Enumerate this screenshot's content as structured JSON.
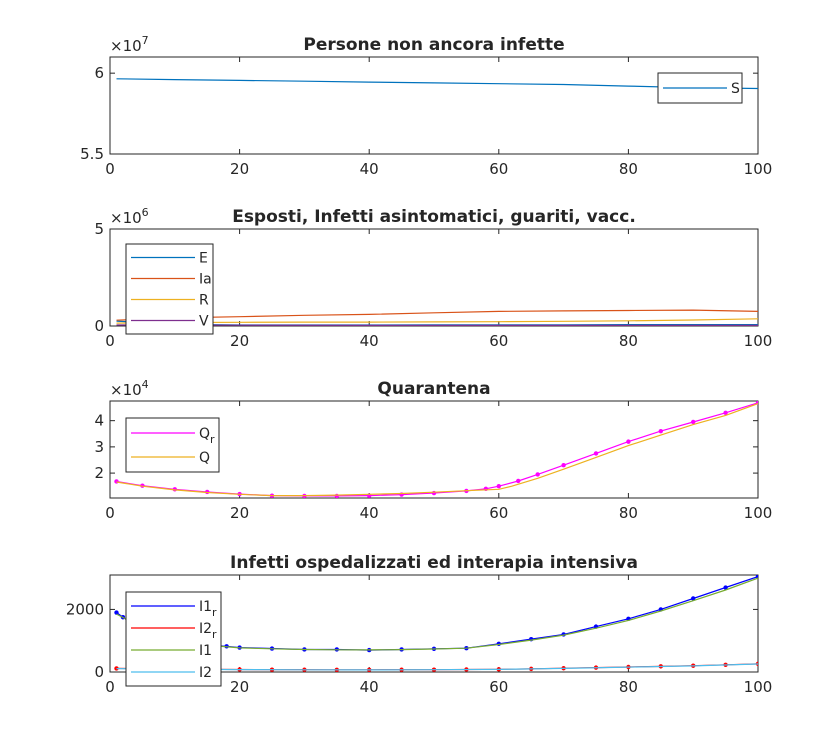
{
  "chart_data": [
    {
      "type": "line",
      "title": "Persone non ancora infette",
      "xlim": [
        0,
        100
      ],
      "ylim": [
        5.5,
        6.1
      ],
      "y_exponent": "7",
      "x_ticks": [
        "0",
        "20",
        "40",
        "60",
        "80",
        "100"
      ],
      "y_ticks": [
        "5.5",
        "6"
      ],
      "legend": "top-right",
      "series": [
        {
          "name": "S",
          "color": "#0072BD",
          "style": "line",
          "x": [
            1,
            10,
            20,
            30,
            40,
            50,
            60,
            70,
            80,
            90,
            100
          ],
          "y": [
            5.965,
            5.96,
            5.955,
            5.95,
            5.945,
            5.94,
            5.935,
            5.93,
            5.92,
            5.91,
            5.905
          ]
        }
      ]
    },
    {
      "type": "line",
      "title": "Esposti, Infetti asintomatici, guariti, vacc.",
      "xlim": [
        0,
        100
      ],
      "ylim": [
        0,
        5
      ],
      "y_exponent": "6",
      "x_ticks": [
        "0",
        "20",
        "40",
        "60",
        "80",
        "100"
      ],
      "y_ticks": [
        "0",
        "5"
      ],
      "legend": "top-left",
      "series": [
        {
          "name": "E",
          "color": "#0072BD",
          "style": "line",
          "x": [
            1,
            10,
            20,
            30,
            40,
            50,
            60,
            70,
            80,
            90,
            100
          ],
          "y": [
            0.25,
            0.08,
            0.05,
            0.05,
            0.05,
            0.06,
            0.06,
            0.06,
            0.07,
            0.07,
            0.07
          ]
        },
        {
          "name": "Ia",
          "color": "#D95319",
          "style": "line",
          "x": [
            1,
            10,
            20,
            30,
            40,
            50,
            60,
            70,
            80,
            90,
            100
          ],
          "y": [
            0.3,
            0.42,
            0.48,
            0.55,
            0.6,
            0.68,
            0.75,
            0.78,
            0.8,
            0.82,
            0.75
          ]
        },
        {
          "name": "R",
          "color": "#EDB120",
          "style": "line",
          "x": [
            1,
            10,
            20,
            30,
            40,
            50,
            60,
            70,
            80,
            90,
            100
          ],
          "y": [
            0.15,
            0.18,
            0.19,
            0.2,
            0.2,
            0.21,
            0.22,
            0.24,
            0.27,
            0.31,
            0.37
          ]
        },
        {
          "name": "V",
          "color": "#7E2F8E",
          "style": "line",
          "x": [
            1,
            20,
            40,
            60,
            80,
            100
          ],
          "y": [
            0.05,
            0.04,
            0.03,
            0.03,
            0.03,
            0.03
          ]
        }
      ]
    },
    {
      "type": "line",
      "title": "Quarantena",
      "xlim": [
        0,
        100
      ],
      "ylim": [
        1.05,
        4.75
      ],
      "y_exponent": "4",
      "x_ticks": [
        "0",
        "20",
        "40",
        "60",
        "80",
        "100"
      ],
      "y_ticks": [
        "2",
        "3",
        "4"
      ],
      "legend": "top-left",
      "series": [
        {
          "name": "Q_r",
          "label_main": "Q",
          "label_sub": "r",
          "color": "#FF00FF",
          "style": "dots",
          "x": [
            1,
            5,
            10,
            15,
            20,
            25,
            30,
            35,
            40,
            45,
            50,
            55,
            58,
            60,
            63,
            66,
            70,
            75,
            80,
            85,
            90,
            95,
            100
          ],
          "y": [
            1.68,
            1.52,
            1.38,
            1.28,
            1.2,
            1.14,
            1.13,
            1.13,
            1.14,
            1.18,
            1.24,
            1.32,
            1.4,
            1.5,
            1.7,
            1.95,
            2.3,
            2.75,
            3.2,
            3.6,
            3.95,
            4.3,
            4.68
          ]
        },
        {
          "name": "Q",
          "color": "#EDB120",
          "style": "line",
          "x": [
            1,
            5,
            10,
            15,
            20,
            25,
            30,
            35,
            40,
            45,
            50,
            55,
            60,
            62,
            66,
            70,
            75,
            80,
            85,
            90,
            95,
            100
          ],
          "y": [
            1.66,
            1.5,
            1.36,
            1.26,
            1.19,
            1.14,
            1.14,
            1.16,
            1.19,
            1.22,
            1.27,
            1.33,
            1.38,
            1.5,
            1.8,
            2.15,
            2.6,
            3.05,
            3.45,
            3.85,
            4.2,
            4.65
          ]
        }
      ]
    },
    {
      "type": "line",
      "title": "Infetti ospedalizzati ed interapia intensiva",
      "xlim": [
        0,
        100
      ],
      "ylim": [
        0,
        3100
      ],
      "x_ticks": [
        "0",
        "20",
        "40",
        "60",
        "80",
        "100"
      ],
      "y_ticks": [
        "0",
        "2000"
      ],
      "legend": "top-left",
      "series": [
        {
          "name": "I1_r",
          "label_main": "I1",
          "label_sub": "r",
          "color": "#0000FF",
          "style": "dots",
          "x": [
            1,
            2,
            3,
            5,
            8,
            10,
            12,
            15,
            18,
            20,
            25,
            30,
            35,
            40,
            45,
            50,
            55,
            60,
            65,
            70,
            75,
            80,
            85,
            90,
            95,
            100
          ],
          "y": [
            1900,
            1750,
            1600,
            1400,
            1200,
            1050,
            950,
            870,
            820,
            780,
            750,
            720,
            720,
            700,
            720,
            740,
            760,
            900,
            1050,
            1200,
            1450,
            1700,
            2000,
            2350,
            2700,
            3050
          ]
        },
        {
          "name": "I2_r",
          "label_main": "I2",
          "label_sub": "r",
          "color": "#FF0000",
          "style": "dots",
          "x": [
            1,
            5,
            10,
            15,
            20,
            25,
            30,
            35,
            40,
            45,
            50,
            55,
            60,
            65,
            70,
            75,
            80,
            85,
            90,
            95,
            100
          ],
          "y": [
            115,
            105,
            95,
            85,
            80,
            75,
            72,
            70,
            70,
            72,
            75,
            80,
            85,
            100,
            120,
            140,
            160,
            180,
            200,
            230,
            260
          ]
        },
        {
          "name": "I1",
          "color": "#77AC30",
          "style": "line",
          "x": [
            1,
            5,
            10,
            15,
            20,
            25,
            30,
            35,
            40,
            45,
            50,
            55,
            60,
            65,
            70,
            75,
            80,
            85,
            90,
            95,
            100
          ],
          "y": [
            1850,
            1420,
            1030,
            860,
            770,
            740,
            720,
            710,
            705,
            715,
            735,
            760,
            880,
            1020,
            1180,
            1400,
            1650,
            1950,
            2280,
            2620,
            3000
          ]
        },
        {
          "name": "I2",
          "color": "#4DBEEE",
          "style": "line",
          "x": [
            1,
            10,
            20,
            30,
            40,
            50,
            60,
            70,
            80,
            90,
            100
          ],
          "y": [
            110,
            90,
            78,
            70,
            68,
            72,
            82,
            115,
            155,
            195,
            255
          ]
        }
      ]
    }
  ]
}
